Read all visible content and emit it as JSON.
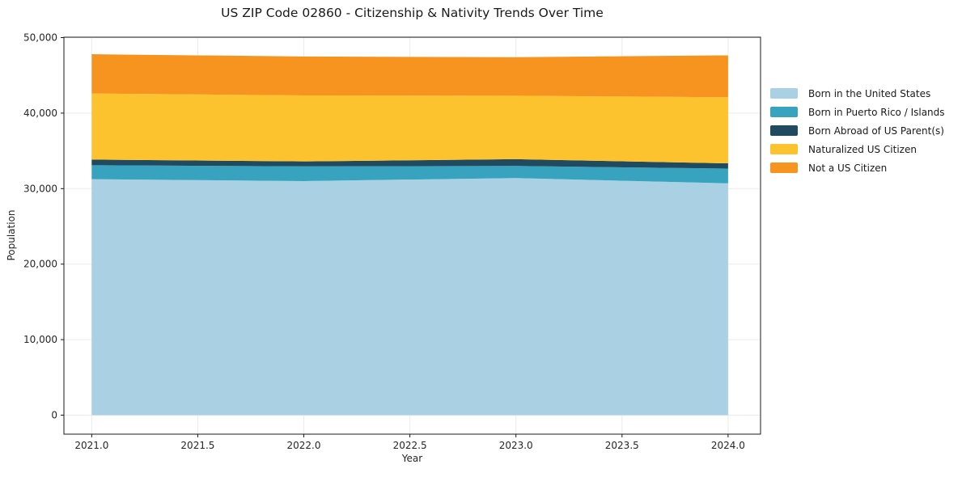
{
  "title": "US ZIP Code 02860 - Citizenship & Nativity Trends Over Time",
  "chart_data": {
    "type": "area",
    "stacked": true,
    "title": "US ZIP Code 02860 - Citizenship & Nativity Trends Over Time",
    "xlabel": "Year",
    "ylabel": "Population",
    "legend_position": "right-outside",
    "grid": true,
    "x": [
      2021,
      2022,
      2023,
      2024
    ],
    "series": [
      {
        "name": "Born in the United States",
        "color": "#a9d1e3",
        "values": [
          31250,
          31000,
          31400,
          30700
        ]
      },
      {
        "name": "Born in Puerto Rico / Islands",
        "color": "#38a3bf",
        "values": [
          1850,
          1950,
          1600,
          1950
        ]
      },
      {
        "name": "Born Abroad of US Parent(s)",
        "color": "#1f4a5f",
        "values": [
          750,
          650,
          900,
          700
        ]
      },
      {
        "name": "Naturalized US Citizen",
        "color": "#fdc32e",
        "values": [
          8750,
          8750,
          8400,
          8750
        ]
      },
      {
        "name": "Not a US Citizen",
        "color": "#f7941f",
        "values": [
          5200,
          5150,
          5100,
          5550
        ]
      }
    ],
    "totals": [
      47800,
      47500,
      47400,
      47650
    ],
    "xlim": [
      2020.869,
      2024.153
    ],
    "ylim": [
      -2516,
      50054
    ],
    "x_ticks": [
      {
        "value": 2021.0,
        "label": "2021.0"
      },
      {
        "value": 2021.5,
        "label": "2021.5"
      },
      {
        "value": 2022.0,
        "label": "2022.0"
      },
      {
        "value": 2022.5,
        "label": "2022.5"
      },
      {
        "value": 2023.0,
        "label": "2023.0"
      },
      {
        "value": 2023.5,
        "label": "2023.5"
      },
      {
        "value": 2024.0,
        "label": "2024.0"
      }
    ],
    "y_ticks": [
      {
        "value": 0,
        "label": "0"
      },
      {
        "value": 10000,
        "label": "10,000"
      },
      {
        "value": 20000,
        "label": "20,000"
      },
      {
        "value": 30000,
        "label": "30,000"
      },
      {
        "value": 40000,
        "label": "40,000"
      },
      {
        "value": 50000,
        "label": "50,000"
      }
    ],
    "colors": {
      "grid": "#ebebeb",
      "spine": "#1a1a1a",
      "tick_text": "#262626"
    }
  }
}
